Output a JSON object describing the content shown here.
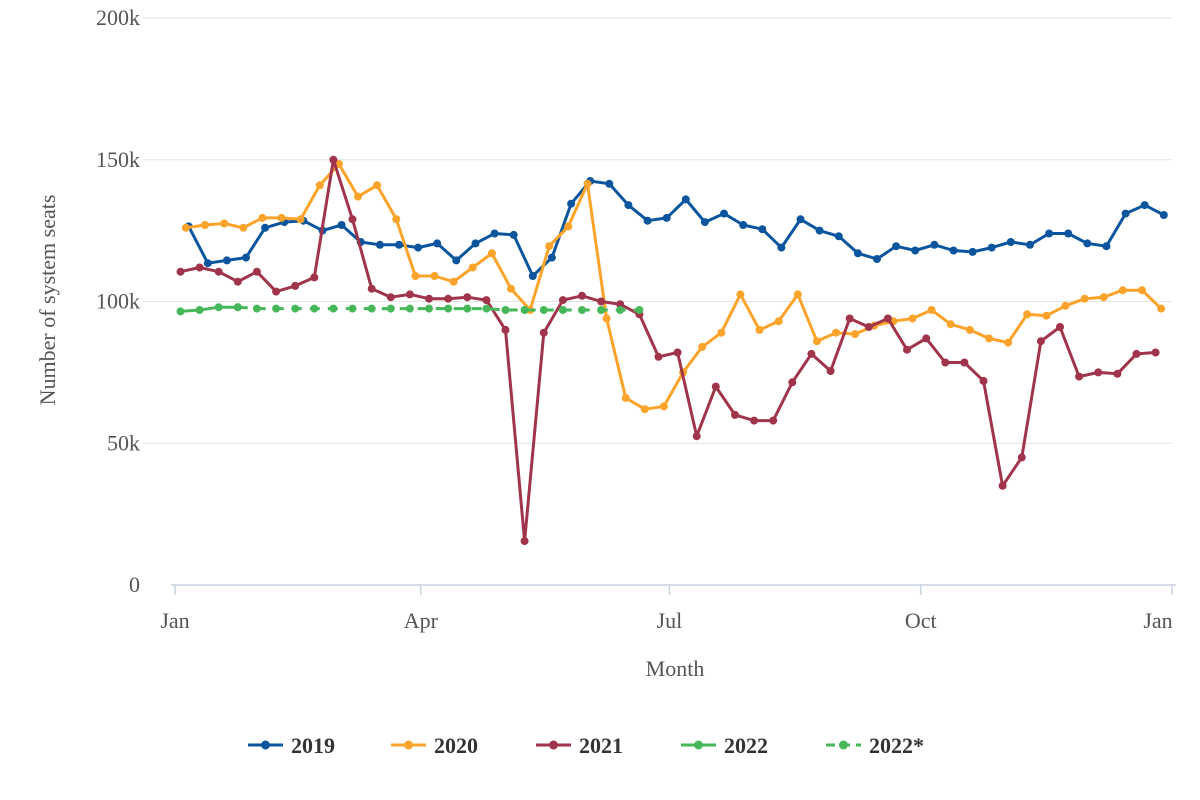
{
  "chart_data": {
    "type": "line",
    "xlabel": "Month",
    "ylabel": "Number of system seats",
    "x_range": [
      "2019-01-01",
      "2020-01-01"
    ],
    "ylim": [
      0,
      200000
    ],
    "y_ticks": [
      0,
      50000,
      100000,
      150000,
      200000
    ],
    "y_tick_labels": [
      "0",
      "50k",
      "100k",
      "150k",
      "200k"
    ],
    "x_ticks": [
      "2019-01-01",
      "2019-04-01",
      "2019-07-01",
      "2019-10-01",
      "2020-01-01"
    ],
    "x_tick_labels": [
      "Jan",
      "Apr",
      "Jul",
      "Oct",
      "Jan"
    ],
    "grid": "horizontal",
    "legend": "bottom-center",
    "series": [
      {
        "name": "2019",
        "color": "#0b559f",
        "dash": false,
        "x": [
          "2019-01-06",
          "2019-01-13",
          "2019-01-20",
          "2019-01-27",
          "2019-02-03",
          "2019-02-10",
          "2019-02-17",
          "2019-02-24",
          "2019-03-03",
          "2019-03-10",
          "2019-03-17",
          "2019-03-24",
          "2019-03-31",
          "2019-04-07",
          "2019-04-14",
          "2019-04-21",
          "2019-04-28",
          "2019-05-05",
          "2019-05-12",
          "2019-05-19",
          "2019-05-26",
          "2019-06-02",
          "2019-06-09",
          "2019-06-16",
          "2019-06-23",
          "2019-06-30",
          "2019-07-07",
          "2019-07-14",
          "2019-07-21",
          "2019-07-28",
          "2019-08-04",
          "2019-08-11",
          "2019-08-18",
          "2019-08-25",
          "2019-09-01",
          "2019-09-08",
          "2019-09-15",
          "2019-09-22",
          "2019-09-29",
          "2019-10-06",
          "2019-10-13",
          "2019-10-20",
          "2019-10-27",
          "2019-11-03",
          "2019-11-10",
          "2019-11-17",
          "2019-11-24",
          "2019-12-01",
          "2019-12-08",
          "2019-12-15",
          "2019-12-22",
          "2019-12-29"
        ],
        "values": [
          126500,
          113500,
          114500,
          115500,
          126000,
          128000,
          128500,
          125000,
          127000,
          121000,
          120000,
          120000,
          119000,
          120500,
          114500,
          120500,
          124000,
          123500,
          109000,
          115500,
          134500,
          142500,
          141500,
          134000,
          128500,
          129500,
          136000,
          128000,
          131000,
          127000,
          125500,
          119000,
          129000,
          125000,
          123000,
          117000,
          115000,
          119500,
          118000,
          120000,
          118000,
          117500,
          119000,
          121000,
          120000,
          124000,
          124000,
          120500,
          119500,
          131000,
          134000,
          130500
        ]
      },
      {
        "name": "2020",
        "color": "#fba32a",
        "dash": false,
        "x": [
          "2019-01-05",
          "2019-01-12",
          "2019-01-19",
          "2019-01-26",
          "2019-02-02",
          "2019-02-09",
          "2019-02-16",
          "2019-02-23",
          "2019-03-02",
          "2019-03-09",
          "2019-03-16",
          "2019-03-23",
          "2019-03-30",
          "2019-04-06",
          "2019-04-13",
          "2019-04-20",
          "2019-04-27",
          "2019-05-04",
          "2019-05-11",
          "2019-05-18",
          "2019-05-25",
          "2019-06-01",
          "2019-06-08",
          "2019-06-15",
          "2019-06-22",
          "2019-06-29",
          "2019-07-06",
          "2019-07-13",
          "2019-07-20",
          "2019-07-27",
          "2019-08-03",
          "2019-08-10",
          "2019-08-17",
          "2019-08-24",
          "2019-08-31",
          "2019-09-07",
          "2019-09-14",
          "2019-09-21",
          "2019-09-28",
          "2019-10-05",
          "2019-10-12",
          "2019-10-19",
          "2019-10-26",
          "2019-11-02",
          "2019-11-09",
          "2019-11-16",
          "2019-11-23",
          "2019-11-30",
          "2019-12-07",
          "2019-12-14",
          "2019-12-21",
          "2019-12-28"
        ],
        "values": [
          126000,
          127000,
          127500,
          126000,
          129500,
          129500,
          129000,
          141000,
          148500,
          137000,
          141000,
          129000,
          109000,
          109000,
          107000,
          112000,
          117000,
          104500,
          97000,
          119500,
          126500,
          141500,
          94000,
          66000,
          62000,
          63000,
          75000,
          84000,
          89000,
          102500,
          90000,
          93000,
          102500,
          86000,
          89000,
          88500,
          91500,
          93000,
          94000,
          97000,
          92000,
          90000,
          87000,
          85500,
          95500,
          95000,
          98500,
          101000,
          101500,
          104000,
          104000,
          97500
        ]
      },
      {
        "name": "2021",
        "color": "#a0344a",
        "dash": false,
        "x": [
          "2019-01-03",
          "2019-01-10",
          "2019-01-17",
          "2019-01-24",
          "2019-01-31",
          "2019-02-07",
          "2019-02-14",
          "2019-02-21",
          "2019-02-28",
          "2019-03-07",
          "2019-03-14",
          "2019-03-21",
          "2019-03-28",
          "2019-04-04",
          "2019-04-11",
          "2019-04-18",
          "2019-04-25",
          "2019-05-02",
          "2019-05-09",
          "2019-05-16",
          "2019-05-23",
          "2019-05-30",
          "2019-06-06",
          "2019-06-13",
          "2019-06-20",
          "2019-06-27",
          "2019-07-04",
          "2019-07-11",
          "2019-07-18",
          "2019-07-25",
          "2019-08-01",
          "2019-08-08",
          "2019-08-15",
          "2019-08-22",
          "2019-08-29",
          "2019-09-05",
          "2019-09-12",
          "2019-09-19",
          "2019-09-26",
          "2019-10-03",
          "2019-10-10",
          "2019-10-17",
          "2019-10-24",
          "2019-10-31",
          "2019-11-07",
          "2019-11-14",
          "2019-11-21",
          "2019-11-28",
          "2019-12-05",
          "2019-12-12",
          "2019-12-19",
          "2019-12-26"
        ],
        "values": [
          110500,
          112000,
          110500,
          107000,
          110500,
          103500,
          105500,
          108500,
          150000,
          129000,
          104500,
          101500,
          102500,
          101000,
          101000,
          101500,
          100500,
          90000,
          15500,
          89000,
          100500,
          102000,
          100000,
          99000,
          95500,
          80500,
          82000,
          52500,
          70000,
          60000,
          58000,
          58000,
          71500,
          81500,
          75500,
          94000,
          91000,
          94000,
          83000,
          87000,
          78500,
          78500,
          72000,
          35000,
          45000,
          86000,
          91000,
          73500,
          75000,
          74500,
          81500,
          82000
        ]
      },
      {
        "name": "2022",
        "color": "#47b85a",
        "dash": false,
        "x": [
          "2019-01-03",
          "2019-01-10",
          "2019-01-17",
          "2019-01-24"
        ],
        "values": [
          96500,
          97000,
          98000,
          98000
        ]
      },
      {
        "name": "2022*",
        "color": "#47b85a",
        "dash": true,
        "x": [
          "2019-01-24",
          "2019-01-31",
          "2019-02-07",
          "2019-02-14",
          "2019-02-21",
          "2019-02-28",
          "2019-03-07",
          "2019-03-14",
          "2019-03-21",
          "2019-03-28",
          "2019-04-04",
          "2019-04-11",
          "2019-04-18",
          "2019-04-25",
          "2019-05-02",
          "2019-05-09",
          "2019-05-16",
          "2019-05-23",
          "2019-05-30",
          "2019-06-06",
          "2019-06-13",
          "2019-06-20"
        ],
        "values": [
          98000,
          97500,
          97500,
          97500,
          97500,
          97500,
          97500,
          97500,
          97500,
          97500,
          97500,
          97500,
          97500,
          97500,
          97000,
          97000,
          97000,
          97000,
          97000,
          97000,
          97000,
          97000
        ]
      }
    ]
  }
}
